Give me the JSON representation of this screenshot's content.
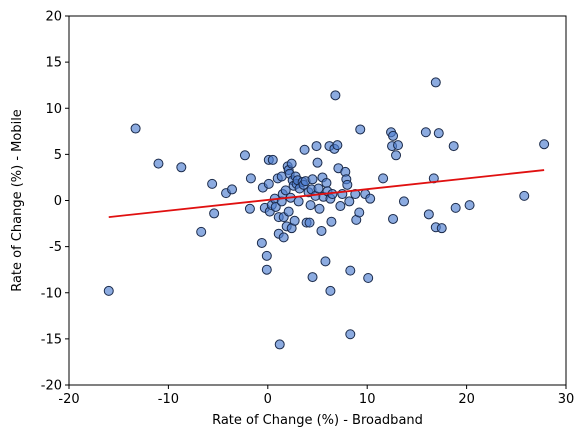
{
  "chart_data": {
    "type": "scatter",
    "title": "",
    "xlabel": "Rate of Change (%) - Broadband",
    "ylabel": "Rate of Change (%) - Mobile",
    "xlim": [
      -20,
      30
    ],
    "ylim": [
      -20,
      20
    ],
    "xticks": [
      "-20",
      "-10",
      "0",
      "10",
      "20",
      "30"
    ],
    "yticks": [
      "20",
      "15",
      "10",
      "5",
      "0",
      "-5",
      "-10",
      "-15",
      "-20"
    ],
    "xtick_values": [
      -20,
      -10,
      0,
      10,
      20,
      30
    ],
    "ytick_values": [
      20,
      15,
      10,
      5,
      0,
      -5,
      -10,
      -15,
      -20
    ],
    "grid": false,
    "point_color": "#4f7ecf",
    "point_edge_color": "#1a2a4a",
    "trend_color": "#e01010",
    "trendline": {
      "x": [
        -16,
        27.8
      ],
      "y": [
        -1.8,
        3.3
      ]
    },
    "points": [
      {
        "x": -16,
        "y": -9.8
      },
      {
        "x": -13.3,
        "y": 7.8
      },
      {
        "x": -11,
        "y": 4
      },
      {
        "x": -8.7,
        "y": 3.6
      },
      {
        "x": -6.7,
        "y": -3.4
      },
      {
        "x": -5.6,
        "y": 1.8
      },
      {
        "x": -5.4,
        "y": -1.4
      },
      {
        "x": -4.2,
        "y": 0.8
      },
      {
        "x": -3.6,
        "y": 1.2
      },
      {
        "x": -2.3,
        "y": 4.9
      },
      {
        "x": -1.7,
        "y": 2.4
      },
      {
        "x": -1.8,
        "y": -0.9
      },
      {
        "x": -0.6,
        "y": -4.6
      },
      {
        "x": -0.5,
        "y": 1.4
      },
      {
        "x": -0.3,
        "y": -0.8
      },
      {
        "x": -0.1,
        "y": -6
      },
      {
        "x": -0.1,
        "y": -7.5
      },
      {
        "x": 0.1,
        "y": 4.4
      },
      {
        "x": 0.1,
        "y": 1.8
      },
      {
        "x": 0.2,
        "y": -1.2
      },
      {
        "x": 0.4,
        "y": -0.5
      },
      {
        "x": 0.5,
        "y": 4.4
      },
      {
        "x": 0.7,
        "y": 0.2
      },
      {
        "x": 0.8,
        "y": -0.7
      },
      {
        "x": 1,
        "y": 2.4
      },
      {
        "x": 1.1,
        "y": -1.8
      },
      {
        "x": 1.1,
        "y": -3.6
      },
      {
        "x": 1.2,
        "y": -15.6
      },
      {
        "x": 1.4,
        "y": 2.6
      },
      {
        "x": 1.4,
        "y": -0.1
      },
      {
        "x": 1.5,
        "y": 0.7
      },
      {
        "x": 1.6,
        "y": -1.8
      },
      {
        "x": 1.6,
        "y": -4
      },
      {
        "x": 1.8,
        "y": 1.1
      },
      {
        "x": 1.9,
        "y": -2.8
      },
      {
        "x": 2,
        "y": 3.7
      },
      {
        "x": 2.1,
        "y": 3.3
      },
      {
        "x": 2.1,
        "y": -1.2
      },
      {
        "x": 2.2,
        "y": 2.9
      },
      {
        "x": 2.3,
        "y": 0.3
      },
      {
        "x": 2.4,
        "y": -3
      },
      {
        "x": 2.4,
        "y": 4
      },
      {
        "x": 2.5,
        "y": 2.2
      },
      {
        "x": 2.6,
        "y": 1.6
      },
      {
        "x": 2.7,
        "y": -2.2
      },
      {
        "x": 2.8,
        "y": 2.6
      },
      {
        "x": 2.9,
        "y": 1.8
      },
      {
        "x": 3,
        "y": 2.2
      },
      {
        "x": 3.1,
        "y": -0.1
      },
      {
        "x": 3.2,
        "y": 1.3
      },
      {
        "x": 3.5,
        "y": 2
      },
      {
        "x": 3.6,
        "y": 1.7
      },
      {
        "x": 3.7,
        "y": 5.5
      },
      {
        "x": 3.8,
        "y": 2.1
      },
      {
        "x": 3.9,
        "y": -2.4
      },
      {
        "x": 4.1,
        "y": 0.9
      },
      {
        "x": 4.2,
        "y": -2.4
      },
      {
        "x": 4.3,
        "y": -0.5
      },
      {
        "x": 4.4,
        "y": 1.2
      },
      {
        "x": 4.5,
        "y": 2.3
      },
      {
        "x": 4.5,
        "y": -8.3
      },
      {
        "x": 4.8,
        "y": 0.5
      },
      {
        "x": 4.9,
        "y": 5.9
      },
      {
        "x": 5,
        "y": 4.1
      },
      {
        "x": 5.1,
        "y": 1.3
      },
      {
        "x": 5.2,
        "y": -0.9
      },
      {
        "x": 5.4,
        "y": -3.3
      },
      {
        "x": 5.5,
        "y": 2.5
      },
      {
        "x": 5.6,
        "y": 0.4
      },
      {
        "x": 5.8,
        "y": -6.6
      },
      {
        "x": 5.9,
        "y": 1.9
      },
      {
        "x": 6,
        "y": 1
      },
      {
        "x": 6.2,
        "y": 5.9
      },
      {
        "x": 6.3,
        "y": 0.2
      },
      {
        "x": 6.3,
        "y": -9.8
      },
      {
        "x": 6.4,
        "y": -2.3
      },
      {
        "x": 6.5,
        "y": 0.7
      },
      {
        "x": 6.7,
        "y": 5.6
      },
      {
        "x": 6.8,
        "y": 11.4
      },
      {
        "x": 7,
        "y": 6
      },
      {
        "x": 7.1,
        "y": 3.5
      },
      {
        "x": 7.3,
        "y": -0.6
      },
      {
        "x": 7.5,
        "y": 0.7
      },
      {
        "x": 7.8,
        "y": 3.1
      },
      {
        "x": 7.9,
        "y": 2.3
      },
      {
        "x": 8,
        "y": 1.7
      },
      {
        "x": 8.2,
        "y": -0.1
      },
      {
        "x": 8.3,
        "y": -7.6
      },
      {
        "x": 8.3,
        "y": -14.5
      },
      {
        "x": 8.8,
        "y": 0.7
      },
      {
        "x": 8.9,
        "y": -2.1
      },
      {
        "x": 9.2,
        "y": -1.3
      },
      {
        "x": 9.3,
        "y": 7.7
      },
      {
        "x": 9.8,
        "y": 0.7
      },
      {
        "x": 10.1,
        "y": -8.4
      },
      {
        "x": 10.3,
        "y": 0.2
      },
      {
        "x": 11.6,
        "y": 2.4
      },
      {
        "x": 12.4,
        "y": 7.4
      },
      {
        "x": 12.5,
        "y": 5.9
      },
      {
        "x": 12.6,
        "y": 7
      },
      {
        "x": 12.6,
        "y": -2
      },
      {
        "x": 12.9,
        "y": 4.9
      },
      {
        "x": 13.1,
        "y": 6
      },
      {
        "x": 13.7,
        "y": -0.1
      },
      {
        "x": 15.9,
        "y": 7.4
      },
      {
        "x": 16.2,
        "y": -1.5
      },
      {
        "x": 16.7,
        "y": 2.4
      },
      {
        "x": 16.9,
        "y": 12.8
      },
      {
        "x": 16.9,
        "y": -2.9
      },
      {
        "x": 17.2,
        "y": 7.3
      },
      {
        "x": 17.5,
        "y": -3
      },
      {
        "x": 18.7,
        "y": 5.9
      },
      {
        "x": 18.9,
        "y": -0.8
      },
      {
        "x": 20.3,
        "y": -0.5
      },
      {
        "x": 25.8,
        "y": 0.5
      },
      {
        "x": 27.8,
        "y": 6.1
      }
    ]
  }
}
